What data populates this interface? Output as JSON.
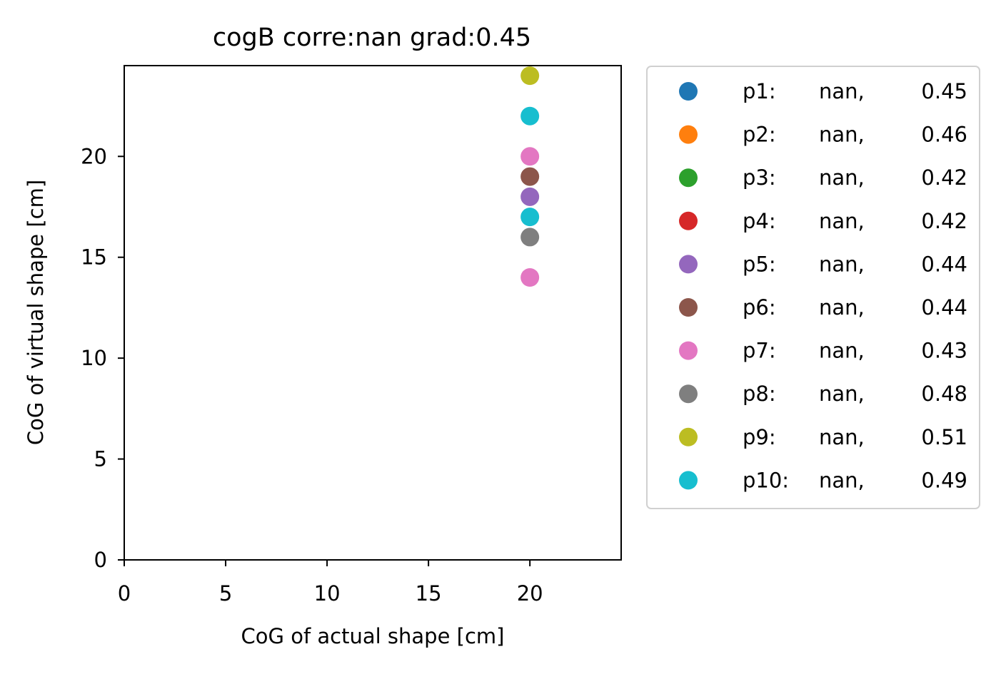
{
  "chart_data": {
    "type": "scatter",
    "title": "cogB corre:nan grad:0.45",
    "xlabel": "CoG of actual shape [cm]",
    "ylabel": "CoG of virtual shape [cm]",
    "xlim": [
      0,
      24.5
    ],
    "ylim": [
      0,
      24.5
    ],
    "xticks": [
      0,
      5,
      10,
      15,
      20
    ],
    "yticks": [
      0,
      5,
      10,
      15,
      20
    ],
    "grid": false,
    "legend_placement": "outside-right",
    "series": [
      {
        "name": "p1:",
        "corr": "nan,",
        "grad": "0.45",
        "color": "#1f77b4",
        "points": []
      },
      {
        "name": "p2:",
        "corr": "nan,",
        "grad": "0.46",
        "color": "#ff7f0e",
        "points": []
      },
      {
        "name": "p3:",
        "corr": "nan,",
        "grad": "0.42",
        "color": "#2ca02c",
        "points": []
      },
      {
        "name": "p4:",
        "corr": "nan,",
        "grad": "0.42",
        "color": "#d62728",
        "points": []
      },
      {
        "name": "p5:",
        "corr": "nan,",
        "grad": "0.44",
        "color": "#9467bd",
        "points": [
          [
            20,
            18
          ]
        ]
      },
      {
        "name": "p6:",
        "corr": "nan,",
        "grad": "0.44",
        "color": "#8c564b",
        "points": [
          [
            20,
            19
          ]
        ]
      },
      {
        "name": "p7:",
        "corr": "nan,",
        "grad": "0.43",
        "color": "#e377c2",
        "points": [
          [
            20,
            20
          ],
          [
            20,
            14
          ]
        ]
      },
      {
        "name": "p8:",
        "corr": "nan,",
        "grad": "0.48",
        "color": "#7f7f7f",
        "points": [
          [
            20,
            16
          ]
        ]
      },
      {
        "name": "p9:",
        "corr": "nan,",
        "grad": "0.51",
        "color": "#bcbd22",
        "points": [
          [
            20,
            24
          ]
        ]
      },
      {
        "name": "p10:",
        "corr": "nan,",
        "grad": "0.49",
        "color": "#17becf",
        "points": [
          [
            20,
            22
          ],
          [
            20,
            17
          ]
        ]
      }
    ]
  }
}
